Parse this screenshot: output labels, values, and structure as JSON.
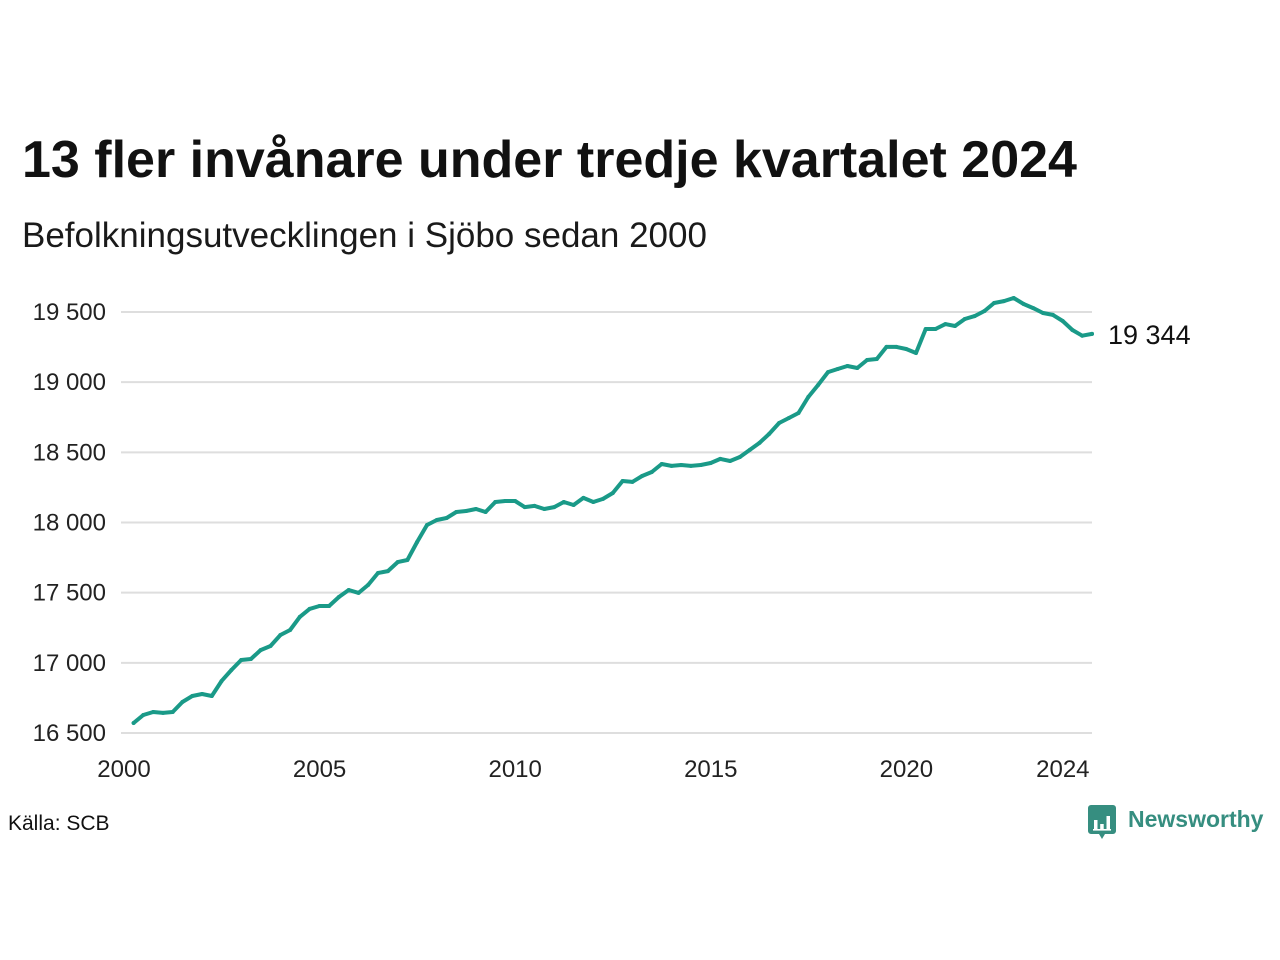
{
  "chart_data": {
    "type": "line",
    "title": "13 fler invånare under tredje kvartalet 2024",
    "subtitle": "Befolkningsutvecklingen i Sjöbo sedan 2000",
    "x": [
      "2000-03-31",
      "2000-06-30",
      "2000-09-30",
      "2000-12-31",
      "2001-03-31",
      "2001-06-30",
      "2001-09-30",
      "2001-12-31",
      "2002-03-31",
      "2002-06-30",
      "2002-09-30",
      "2002-12-31",
      "2003-03-31",
      "2003-06-30",
      "2003-09-30",
      "2003-12-31",
      "2004-03-31",
      "2004-06-30",
      "2004-09-30",
      "2004-12-31",
      "2005-03-31",
      "2005-06-30",
      "2005-09-30",
      "2005-12-31",
      "2006-03-31",
      "2006-06-30",
      "2006-09-30",
      "2006-12-31",
      "2007-03-31",
      "2007-06-30",
      "2007-09-30",
      "2007-12-31",
      "2008-03-31",
      "2008-06-30",
      "2008-09-30",
      "2008-12-31",
      "2009-03-31",
      "2009-06-30",
      "2009-09-30",
      "2009-12-31",
      "2010-03-31",
      "2010-06-30",
      "2010-09-30",
      "2010-12-31",
      "2011-03-31",
      "2011-06-30",
      "2011-09-30",
      "2011-12-31",
      "2012-03-31",
      "2012-06-30",
      "2012-09-30",
      "2012-12-31",
      "2013-03-31",
      "2013-06-30",
      "2013-09-30",
      "2013-12-31",
      "2014-03-31",
      "2014-06-30",
      "2014-09-30",
      "2014-12-31",
      "2015-03-31",
      "2015-06-30",
      "2015-09-30",
      "2015-12-31",
      "2016-03-31",
      "2016-06-30",
      "2016-09-30",
      "2016-12-31",
      "2017-03-31",
      "2017-06-30",
      "2017-09-30",
      "2017-12-31",
      "2018-03-31",
      "2018-06-30",
      "2018-09-30",
      "2018-12-31",
      "2019-03-31",
      "2019-06-30",
      "2019-09-30",
      "2019-12-31",
      "2020-03-31",
      "2020-06-30",
      "2020-09-30",
      "2020-12-31",
      "2021-03-31",
      "2021-06-30",
      "2021-09-30",
      "2021-12-31",
      "2022-03-31",
      "2022-06-30",
      "2022-09-30",
      "2022-12-31",
      "2023-03-31",
      "2023-06-30",
      "2023-09-30",
      "2023-12-31",
      "2024-03-31",
      "2024-06-30",
      "2024-09-30"
    ],
    "series": [
      {
        "color": "#1a9a88",
        "values": [
          16571,
          16628,
          16650,
          16643,
          16650,
          16721,
          16764,
          16778,
          16764,
          16870,
          16949,
          17020,
          17027,
          17091,
          17120,
          17198,
          17234,
          17327,
          17384,
          17405,
          17405,
          17469,
          17519,
          17498,
          17555,
          17640,
          17654,
          17718,
          17733,
          17861,
          17982,
          18018,
          18032,
          18075,
          18082,
          18096,
          18075,
          18146,
          18153,
          18153,
          18110,
          18118,
          18096,
          18110,
          18146,
          18125,
          18175,
          18146,
          18168,
          18210,
          18296,
          18289,
          18331,
          18360,
          18417,
          18403,
          18410,
          18403,
          18410,
          18424,
          18453,
          18438,
          18467,
          18517,
          18567,
          18631,
          18709,
          18745,
          18780,
          18894,
          18980,
          19072,
          19094,
          19115,
          19101,
          19158,
          19165,
          19251,
          19251,
          19236,
          19208,
          19379,
          19379,
          19414,
          19400,
          19450,
          19471,
          19507,
          19564,
          19578,
          19600,
          19557,
          19528,
          19493,
          19479,
          19436,
          19372,
          19331,
          19344
        ]
      }
    ],
    "last_value_label": "19 344",
    "ylim": [
      16500,
      19500
    ],
    "xlim": [
      "2000-01-01",
      "2024-09-30"
    ],
    "yticks": [
      {
        "value": 16500,
        "label": "16 500"
      },
      {
        "value": 17000,
        "label": "17 000"
      },
      {
        "value": 17500,
        "label": "17 500"
      },
      {
        "value": 18000,
        "label": "18 000"
      },
      {
        "value": 18500,
        "label": "18 500"
      },
      {
        "value": 19000,
        "label": "19 000"
      },
      {
        "value": 19500,
        "label": "19 500"
      }
    ],
    "xticks": [
      {
        "value": "2000-01-01",
        "label": "2000"
      },
      {
        "value": "2005-01-01",
        "label": "2005"
      },
      {
        "value": "2010-01-01",
        "label": "2010"
      },
      {
        "value": "2015-01-01",
        "label": "2015"
      },
      {
        "value": "2020-01-01",
        "label": "2020"
      },
      {
        "value": "2024-01-01",
        "label": "2024"
      }
    ],
    "grid": "horizontal",
    "legend": "none"
  },
  "footer": {
    "source": "Källa: SCB",
    "logo_text": "Newsworthy"
  },
  "colors": {
    "line": "#1a9a88",
    "grid": "#dedede",
    "brand": "#368e80",
    "text": "#111111"
  }
}
